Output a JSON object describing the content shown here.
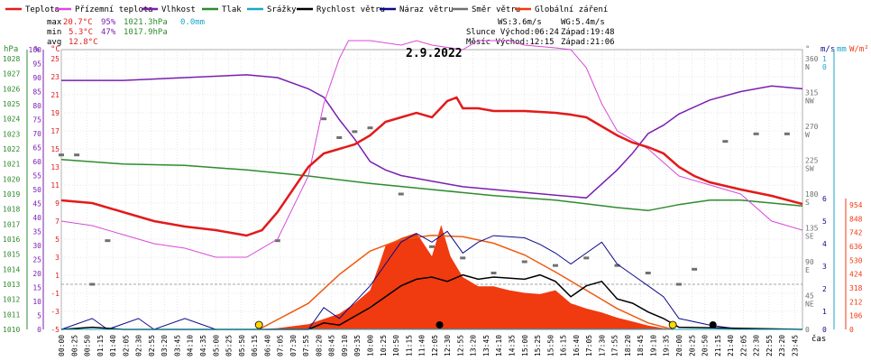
{
  "legend": [
    {
      "label": "Teplota",
      "color": "#e11b1b"
    },
    {
      "label": "Přízemní teplota",
      "color": "#d84ad8"
    },
    {
      "label": "Vlhkost",
      "color": "#7a1fb0"
    },
    {
      "label": "Tlak",
      "color": "#2e8b2e"
    },
    {
      "label": "Srážky",
      "color": "#1aa7c7"
    },
    {
      "label": "Rychlost větru",
      "color": "#000000"
    },
    {
      "label": "Náraz větru",
      "color": "#0a0a8a"
    },
    {
      "label": "Směr větru",
      "color": "#707070"
    },
    {
      "label": "Globální záření",
      "color": "#f03a10"
    }
  ],
  "stats": {
    "max_label": "max",
    "max_temp": "20.7°C",
    "max_hum": "95%",
    "max_press": "1021.3hPa",
    "max_rain": "0.0mm",
    "min_label": "min",
    "min_temp": "5.3°C",
    "min_hum": "47%",
    "min_press": "1017.9hPa",
    "avg_label": "avg",
    "avg_temp": "12.8°C"
  },
  "info": {
    "ws": "WS:3.6m/s",
    "wg": "WG:5.4m/s",
    "sun": "Slunce Východ:06:24",
    "sunset": "Západ:19:48",
    "moon": "Měsíc  Východ:12:15",
    "moonset": "Západ:21:06"
  },
  "date": "2.9.2022",
  "units": {
    "hpa": "hPa",
    "pct": "%",
    "c": "°C",
    "deg": "°",
    "ms": "m/s",
    "mm": "mm",
    "wm": "W/m²",
    "cas": "čas"
  },
  "axes": {
    "hpa": [
      "1028",
      "1027",
      "1026",
      "1025",
      "1024",
      "1023",
      "1022",
      "1021",
      "1020",
      "1019",
      "1018",
      "1017",
      "1016",
      "1015",
      "1014",
      "1013",
      "1012",
      "1011",
      "1010"
    ],
    "pct": [
      "100",
      "95",
      "90",
      "85",
      "80",
      "75",
      "70",
      "65",
      "60",
      "55",
      "50",
      "45",
      "40",
      "35",
      "30",
      "25",
      "20",
      "15",
      "10",
      "5",
      "0"
    ],
    "temp": [
      "25",
      "23",
      "21",
      "19",
      "17",
      "15",
      "13",
      "11",
      "9",
      "7",
      "5",
      "3",
      "1",
      "-1",
      "-3",
      "-5"
    ],
    "dir": [
      {
        "v": "360",
        "d": "N"
      },
      {
        "v": "315",
        "d": "NW"
      },
      {
        "v": "270",
        "d": "W"
      },
      {
        "v": "225",
        "d": "SW"
      },
      {
        "v": "180",
        "d": "S"
      },
      {
        "v": "135",
        "d": "SE"
      },
      {
        "v": "90",
        "d": "E"
      },
      {
        "v": "45",
        "d": "NE"
      },
      {
        "v": "0",
        "d": ""
      }
    ],
    "ms": [
      "1",
      "0",
      "6",
      "5",
      "4",
      "3",
      "2",
      "1",
      "0"
    ],
    "mm": [
      "1",
      "0"
    ],
    "wm": [
      "954",
      "848",
      "742",
      "636",
      "530",
      "424",
      "318",
      "212",
      "106",
      "0"
    ],
    "time": [
      "00:00",
      "00:25",
      "00:50",
      "01:15",
      "01:40",
      "02:05",
      "02:30",
      "02:55",
      "03:20",
      "03:45",
      "04:10",
      "04:35",
      "05:00",
      "05:25",
      "05:50",
      "06:15",
      "06:40",
      "07:05",
      "07:30",
      "07:55",
      "08:20",
      "08:45",
      "09:10",
      "09:35",
      "10:00",
      "10:25",
      "10:50",
      "11:15",
      "11:40",
      "12:05",
      "12:30",
      "12:55",
      "13:20",
      "13:45",
      "14:10",
      "14:35",
      "15:00",
      "15:25",
      "15:50",
      "16:15",
      "16:40",
      "17:05",
      "17:30",
      "17:55",
      "18:20",
      "18:45",
      "19:10",
      "19:35",
      "20:00",
      "20:25",
      "20:50",
      "21:15",
      "21:40",
      "22:05",
      "22:30",
      "22:55",
      "23:20",
      "23:45"
    ]
  },
  "chart_data": {
    "type": "line",
    "title": "2.9.2022",
    "xlabel": "čas",
    "x_unit": "hours",
    "temperature_c": [
      [
        0,
        9.3
      ],
      [
        1,
        9
      ],
      [
        2,
        8
      ],
      [
        3,
        7
      ],
      [
        4,
        6.4
      ],
      [
        5,
        6
      ],
      [
        6,
        5.4
      ],
      [
        6.5,
        6
      ],
      [
        7,
        8
      ],
      [
        7.5,
        10.5
      ],
      [
        8,
        13
      ],
      [
        8.5,
        14.5
      ],
      [
        9,
        15
      ],
      [
        9.5,
        15.5
      ],
      [
        10,
        16.5
      ],
      [
        10.5,
        18
      ],
      [
        11,
        18.5
      ],
      [
        11.5,
        19
      ],
      [
        12,
        18.5
      ],
      [
        12.5,
        20.3
      ],
      [
        12.8,
        20.7
      ],
      [
        13,
        19.5
      ],
      [
        13.5,
        19.5
      ],
      [
        14,
        19.2
      ],
      [
        15,
        19.2
      ],
      [
        16,
        19
      ],
      [
        16.5,
        18.8
      ],
      [
        17,
        18.5
      ],
      [
        17.5,
        17.5
      ],
      [
        18,
        16.5
      ],
      [
        18.5,
        15.7
      ],
      [
        19,
        15.2
      ],
      [
        19.5,
        14.5
      ],
      [
        20,
        13
      ],
      [
        20.5,
        12
      ],
      [
        21,
        11.3
      ],
      [
        22,
        10.5
      ],
      [
        23,
        9.8
      ],
      [
        24,
        8.9
      ]
    ],
    "ground_temp_c": [
      [
        0,
        7
      ],
      [
        1,
        6.5
      ],
      [
        2,
        5.5
      ],
      [
        3,
        4.5
      ],
      [
        4,
        4
      ],
      [
        5,
        3
      ],
      [
        6,
        3
      ],
      [
        7,
        5
      ],
      [
        8,
        12
      ],
      [
        8.5,
        20
      ],
      [
        9,
        25
      ],
      [
        9.3,
        27
      ],
      [
        10,
        27
      ],
      [
        11,
        26.5
      ],
      [
        11.5,
        27
      ],
      [
        12,
        26.5
      ],
      [
        13,
        26
      ],
      [
        13.5,
        27
      ],
      [
        14.5,
        27
      ],
      [
        15,
        26.5
      ],
      [
        16,
        26.2
      ],
      [
        16.5,
        26
      ],
      [
        17,
        24
      ],
      [
        17.5,
        20
      ],
      [
        18,
        17
      ],
      [
        19,
        15
      ],
      [
        20,
        12
      ],
      [
        21,
        11
      ],
      [
        22,
        10
      ],
      [
        23,
        7
      ],
      [
        24,
        6
      ]
    ],
    "humidity_pct": [
      [
        0,
        89
      ],
      [
        2,
        89
      ],
      [
        4,
        90
      ],
      [
        6,
        91
      ],
      [
        7,
        90
      ],
      [
        8,
        86
      ],
      [
        8.5,
        83
      ],
      [
        9,
        75
      ],
      [
        9.5,
        68
      ],
      [
        10,
        60
      ],
      [
        10.5,
        57
      ],
      [
        11,
        55
      ],
      [
        12,
        53
      ],
      [
        13,
        51
      ],
      [
        14,
        50
      ],
      [
        15,
        49
      ],
      [
        16,
        48
      ],
      [
        17,
        47
      ],
      [
        17.5,
        52
      ],
      [
        18,
        57
      ],
      [
        18.5,
        63
      ],
      [
        19,
        70
      ],
      [
        19.5,
        73
      ],
      [
        20,
        77
      ],
      [
        21,
        82
      ],
      [
        22,
        85
      ],
      [
        23,
        87
      ],
      [
        24,
        86
      ]
    ],
    "pressure_hpa": [
      [
        0,
        1021.3
      ],
      [
        2,
        1021
      ],
      [
        4,
        1020.9
      ],
      [
        6,
        1020.6
      ],
      [
        8,
        1020.2
      ],
      [
        10,
        1019.7
      ],
      [
        12,
        1019.3
      ],
      [
        14,
        1018.9
      ],
      [
        16,
        1018.6
      ],
      [
        18,
        1018.1
      ],
      [
        19,
        1017.9
      ],
      [
        20,
        1018.3
      ],
      [
        21,
        1018.6
      ],
      [
        22,
        1018.6
      ],
      [
        23,
        1018.4
      ],
      [
        24,
        1018.2
      ]
    ],
    "precipitation_mm": [
      [
        0,
        0
      ],
      [
        24,
        0
      ]
    ],
    "wind_speed_ms": [
      [
        0,
        0
      ],
      [
        1,
        0.1
      ],
      [
        2,
        0
      ],
      [
        8,
        0
      ],
      [
        8.5,
        0.3
      ],
      [
        9,
        0.2
      ],
      [
        10,
        1
      ],
      [
        11,
        2
      ],
      [
        11.5,
        2.3
      ],
      [
        12,
        2.4
      ],
      [
        12.5,
        2.2
      ],
      [
        13,
        2.5
      ],
      [
        13.5,
        2.3
      ],
      [
        14,
        2.4
      ],
      [
        15,
        2.3
      ],
      [
        15.5,
        2.5
      ],
      [
        16,
        2.2
      ],
      [
        16.5,
        1.5
      ],
      [
        17,
        2
      ],
      [
        17.5,
        2.2
      ],
      [
        18,
        1.4
      ],
      [
        18.5,
        1.2
      ],
      [
        19,
        0.8
      ],
      [
        19.5,
        0.5
      ],
      [
        20,
        0.1
      ],
      [
        24,
        0
      ]
    ],
    "wind_gust_ms": [
      [
        0,
        0
      ],
      [
        1,
        0.5
      ],
      [
        1.5,
        0
      ],
      [
        2.5,
        0.5
      ],
      [
        3,
        0
      ],
      [
        4,
        0.5
      ],
      [
        5,
        0
      ],
      [
        8,
        0
      ],
      [
        8.5,
        1
      ],
      [
        9,
        0.5
      ],
      [
        10,
        2
      ],
      [
        10.5,
        3
      ],
      [
        11,
        4
      ],
      [
        11.5,
        4.4
      ],
      [
        12,
        4
      ],
      [
        12.5,
        4.5
      ],
      [
        13,
        3.5
      ],
      [
        13.5,
        4
      ],
      [
        14,
        4.3
      ],
      [
        15,
        4.2
      ],
      [
        15.5,
        3.9
      ],
      [
        16,
        3.5
      ],
      [
        16.5,
        3
      ],
      [
        17,
        3.5
      ],
      [
        17.5,
        4
      ],
      [
        18,
        3
      ],
      [
        18.5,
        2.5
      ],
      [
        19,
        2
      ],
      [
        19.5,
        1.5
      ],
      [
        20,
        0.5
      ],
      [
        21,
        0.2
      ],
      [
        22,
        0
      ],
      [
        24,
        0
      ]
    ],
    "wind_dir_deg": [
      [
        0,
        232
      ],
      [
        0.5,
        232
      ],
      [
        1,
        60
      ],
      [
        1.5,
        118
      ],
      [
        7,
        118
      ],
      [
        8.5,
        280
      ],
      [
        9,
        255
      ],
      [
        9.5,
        263
      ],
      [
        10,
        268
      ],
      [
        11,
        180
      ],
      [
        12,
        110
      ],
      [
        13,
        95
      ],
      [
        14,
        75
      ],
      [
        15,
        90
      ],
      [
        16,
        85
      ],
      [
        17,
        95
      ],
      [
        18,
        85
      ],
      [
        19,
        75
      ],
      [
        20,
        60
      ],
      [
        20.5,
        80
      ],
      [
        21.5,
        250
      ],
      [
        22.5,
        260
      ],
      [
        23.5,
        260
      ]
    ],
    "solar_wm2": [
      [
        6.3,
        0
      ],
      [
        7,
        10
      ],
      [
        8,
        40
      ],
      [
        9,
        120
      ],
      [
        9.5,
        200
      ],
      [
        10,
        300
      ],
      [
        10.3,
        500
      ],
      [
        10.5,
        640
      ],
      [
        11,
        700
      ],
      [
        11.5,
        740
      ],
      [
        12,
        560
      ],
      [
        12.3,
        800
      ],
      [
        12.6,
        560
      ],
      [
        13,
        400
      ],
      [
        13.5,
        330
      ],
      [
        14,
        330
      ],
      [
        14.5,
        300
      ],
      [
        15,
        280
      ],
      [
        15.5,
        270
      ],
      [
        16,
        300
      ],
      [
        16.5,
        200
      ],
      [
        17,
        160
      ],
      [
        17.5,
        130
      ],
      [
        18,
        90
      ],
      [
        18.5,
        60
      ],
      [
        19,
        30
      ],
      [
        19.5,
        10
      ],
      [
        19.8,
        0
      ]
    ],
    "solar_max_wm2": [
      [
        6.4,
        0
      ],
      [
        8,
        200
      ],
      [
        9,
        420
      ],
      [
        10,
        600
      ],
      [
        11,
        690
      ],
      [
        12,
        720
      ],
      [
        13,
        710
      ],
      [
        14,
        660
      ],
      [
        15,
        570
      ],
      [
        16,
        440
      ],
      [
        17,
        300
      ],
      [
        18,
        160
      ],
      [
        19,
        50
      ],
      [
        19.8,
        0
      ]
    ],
    "sun_events": {
      "sunrise": "06:24",
      "sunset": "19:48",
      "moonrise": "12:15",
      "moonset": "21:06"
    }
  }
}
